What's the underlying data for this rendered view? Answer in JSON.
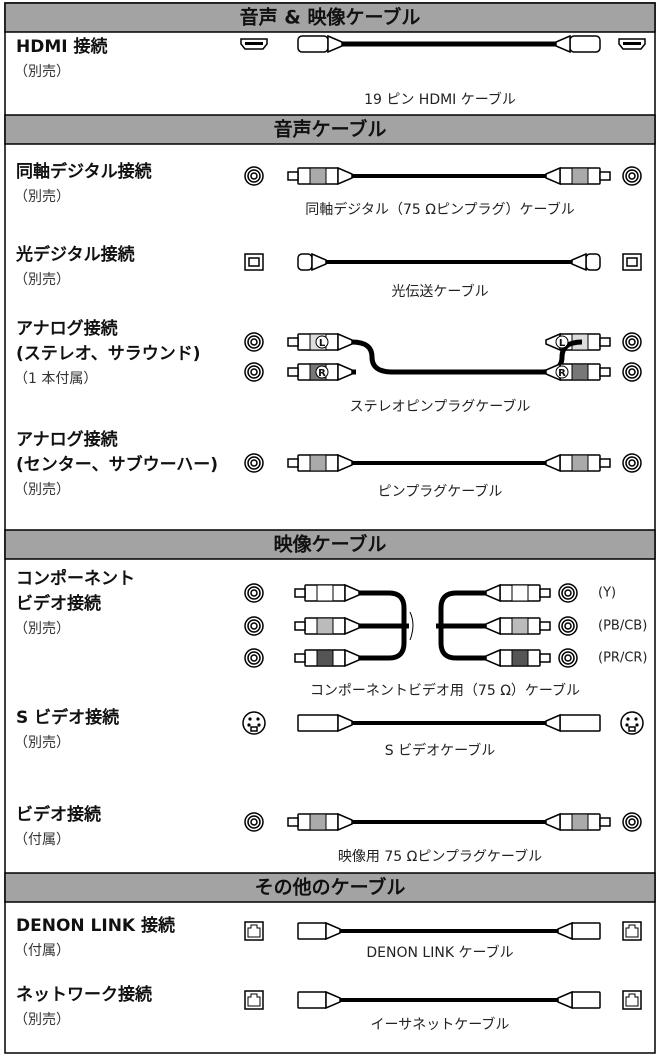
{
  "sections": [
    {
      "title": "音声 & 映像ケーブル",
      "rows": [
        {
          "name": [
            "HDMI 接続"
          ],
          "note": "（別売）",
          "cable": "19 ピン HDMI ケーブル"
        }
      ]
    },
    {
      "title": "音声ケーブル",
      "rows": [
        {
          "name": [
            "同軸デジタル接続"
          ],
          "note": "（別売）",
          "cable": "同軸デジタル（75 Ωピンプラグ）ケーブル"
        },
        {
          "name": [
            "光デジタル接続"
          ],
          "note": "（別売）",
          "cable": "光伝送ケーブル"
        },
        {
          "name": [
            "アナログ接続",
            "(ステレオ、サラウンド)"
          ],
          "note": "（1 本付属）",
          "cable": "ステレオピンプラグケーブル",
          "plug_labels": [
            "L",
            "R"
          ]
        },
        {
          "name": [
            "アナログ接続",
            "(センター、サブウーハー)"
          ],
          "note": "（別売）",
          "cable": "ピンプラグケーブル"
        }
      ]
    },
    {
      "title": "映像ケーブル",
      "rows": [
        {
          "name": [
            "コンポーネント",
            "ビデオ接続"
          ],
          "note": "（別売）",
          "cable": "コンポーネントビデオ用（75 Ω）ケーブル",
          "ports": [
            "(Y)",
            "(PB/CB)",
            "(PR/CR)"
          ]
        },
        {
          "name": [
            "S ビデオ接続"
          ],
          "note": "（別売）",
          "cable": "S ビデオケーブル"
        },
        {
          "name": [
            "ビデオ接続"
          ],
          "note": "（付属）",
          "cable": "映像用 75 Ωピンプラグケーブル"
        }
      ]
    },
    {
      "title": "その他のケーブル",
      "rows": [
        {
          "name": [
            "DENON LINK 接続"
          ],
          "note": "（付属）",
          "cable": "DENON LINK ケーブル"
        },
        {
          "name": [
            "ネットワーク接続"
          ],
          "note": "（別売）",
          "cable": "イーサネットケーブル"
        }
      ]
    }
  ]
}
